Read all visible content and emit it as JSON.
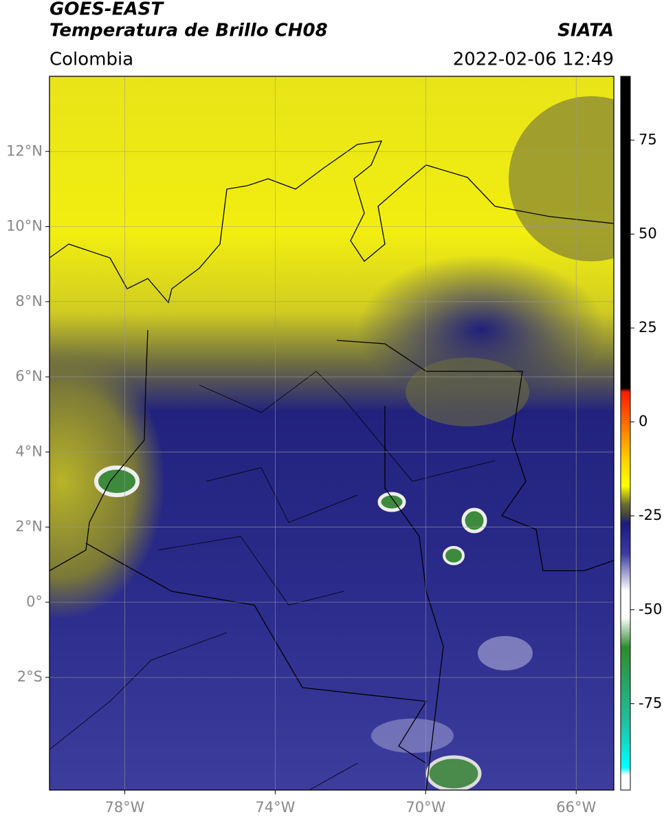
{
  "header": {
    "title": "GOES-EAST",
    "subtitle": "Temperatura de Brillo CH08",
    "source": "SIATA",
    "region": "Colombia",
    "timestamp": "2022-02-06 12:49"
  },
  "map": {
    "xlim": [
      -80,
      -65
    ],
    "ylim": [
      -5,
      14
    ],
    "grid": true,
    "xticks": [
      {
        "value": -78,
        "label": "78°W"
      },
      {
        "value": -74,
        "label": "74°W"
      },
      {
        "value": -70,
        "label": "70°W"
      },
      {
        "value": -66,
        "label": "66°W"
      }
    ],
    "yticks": [
      {
        "value": 12,
        "label": "12°N"
      },
      {
        "value": 10,
        "label": "10°N"
      },
      {
        "value": 8,
        "label": "8°N"
      },
      {
        "value": 6,
        "label": "6°N"
      },
      {
        "value": 4,
        "label": "4°N"
      },
      {
        "value": 2,
        "label": "2°N"
      },
      {
        "value": 0,
        "label": "0°"
      },
      {
        "value": -2,
        "label": "2°S"
      }
    ]
  },
  "colorbar": {
    "lim": [
      -98,
      92
    ],
    "ticks": [
      75,
      50,
      25,
      0,
      -25,
      -50,
      -75
    ],
    "stops": [
      {
        "value": 92,
        "color": "#000000"
      },
      {
        "value": 9,
        "color": "#000000"
      },
      {
        "value": 8,
        "color": "#ff1a00"
      },
      {
        "value": 0,
        "color": "#ff6a00"
      },
      {
        "value": -10,
        "color": "#ffd000"
      },
      {
        "value": -17,
        "color": "#ffff00"
      },
      {
        "value": -22,
        "color": "#6b6b30"
      },
      {
        "value": -25,
        "color": "#404040"
      },
      {
        "value": -27,
        "color": "#1a1a80"
      },
      {
        "value": -35,
        "color": "#3a3aa0"
      },
      {
        "value": -45,
        "color": "#ffffff"
      },
      {
        "value": -52,
        "color": "#ffffff"
      },
      {
        "value": -60,
        "color": "#2e8b2e"
      },
      {
        "value": -80,
        "color": "#20c0a0"
      },
      {
        "value": -92,
        "color": "#00ffff"
      },
      {
        "value": -94,
        "color": "#ffffff"
      },
      {
        "value": -98,
        "color": "#ffffff"
      }
    ]
  }
}
